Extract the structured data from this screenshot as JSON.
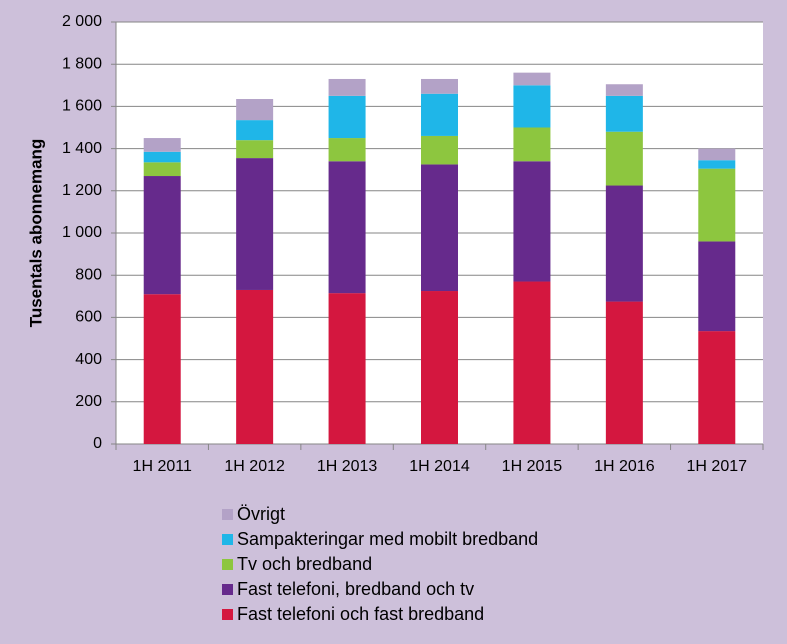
{
  "chart_data": {
    "type": "stacked-bar",
    "y_label": "Tusentals abonnemang",
    "categories": [
      "1H 2011",
      "1H 2012",
      "1H 2013",
      "1H 2014",
      "1H 2015",
      "1H 2016",
      "1H 2017"
    ],
    "series": [
      {
        "name": "Fast telefoni och fast bredband",
        "color": "#d4173f",
        "values": [
          710,
          730,
          715,
          725,
          770,
          675,
          535
        ]
      },
      {
        "name": "Fast telefoni, bredband och tv",
        "color": "#662a8c",
        "values": [
          560,
          625,
          625,
          600,
          570,
          550,
          425
        ]
      },
      {
        "name": "Tv och bredband",
        "color": "#8dc63f",
        "values": [
          65,
          85,
          110,
          135,
          160,
          255,
          345
        ]
      },
      {
        "name": "Sampakteringar med mobilt bredband",
        "color": "#1fb6e8",
        "values": [
          50,
          95,
          200,
          200,
          200,
          170,
          40
        ]
      },
      {
        "name": "Övrigt",
        "color": "#b3a2c7",
        "values": [
          65,
          100,
          80,
          70,
          60,
          55,
          55
        ]
      }
    ],
    "ylim": [
      0,
      2000
    ],
    "yticks": [
      0,
      200,
      400,
      600,
      800,
      {
        "value": 1000,
        "label": "1 000"
      },
      {
        "value": 1200,
        "label": "1 200"
      },
      {
        "value": 1400,
        "label": "1 400"
      },
      {
        "value": 1600,
        "label": "1 600"
      },
      {
        "value": 1800,
        "label": "1 800"
      },
      {
        "value": 2000,
        "label": "2 000"
      }
    ],
    "grid": true,
    "legend": "bottom"
  }
}
